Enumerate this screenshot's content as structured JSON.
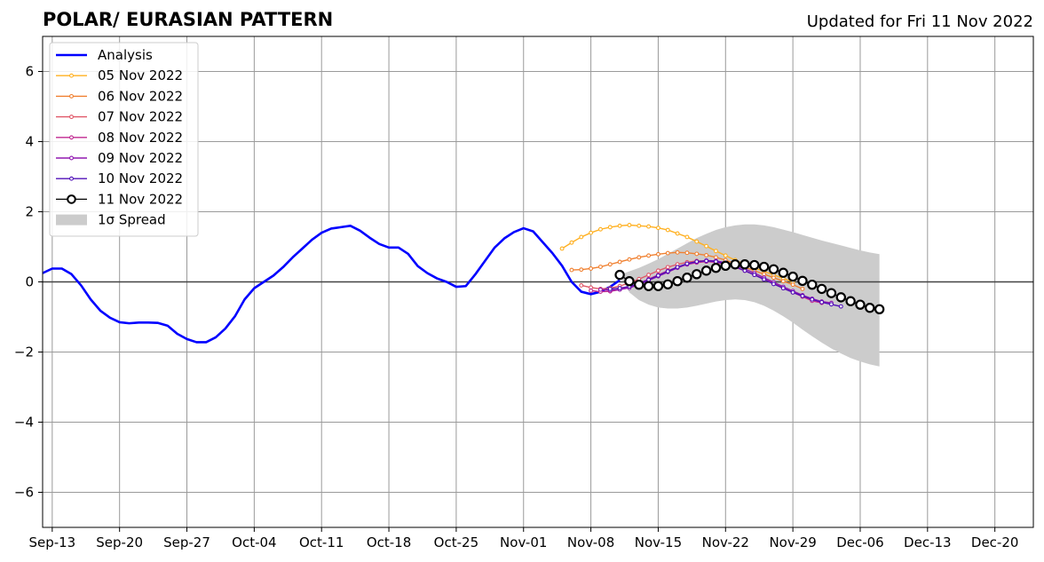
{
  "chart_data": {
    "type": "line",
    "title": "POLAR/ EURASIAN  PATTERN",
    "subtitle": "Updated for Fri 11 Nov 2022",
    "xlabel": "",
    "ylabel": "",
    "xlim": [
      "2022-09-12",
      "2022-12-24"
    ],
    "ylim": [
      -7,
      7
    ],
    "yticks": [
      -6,
      -4,
      -2,
      0,
      2,
      4,
      6
    ],
    "ytick_labels": [
      "−6",
      "−4",
      "−2",
      "0",
      "2",
      "4",
      "6"
    ],
    "xticks": [
      {
        "date": "2022-09-13",
        "label": "Sep-13"
      },
      {
        "date": "2022-09-20",
        "label": "Sep-20"
      },
      {
        "date": "2022-09-27",
        "label": "Sep-27"
      },
      {
        "date": "2022-10-04",
        "label": "Oct-04"
      },
      {
        "date": "2022-10-11",
        "label": "Oct-11"
      },
      {
        "date": "2022-10-18",
        "label": "Oct-18"
      },
      {
        "date": "2022-10-25",
        "label": "Oct-25"
      },
      {
        "date": "2022-11-01",
        "label": "Nov-01"
      },
      {
        "date": "2022-11-08",
        "label": "Nov-08"
      },
      {
        "date": "2022-11-15",
        "label": "Nov-15"
      },
      {
        "date": "2022-11-22",
        "label": "Nov-22"
      },
      {
        "date": "2022-11-29",
        "label": "Nov-29"
      },
      {
        "date": "2022-12-06",
        "label": "Dec-06"
      },
      {
        "date": "2022-12-13",
        "label": "Dec-13"
      },
      {
        "date": "2022-12-20",
        "label": "Dec-20"
      }
    ],
    "grid": true,
    "legend_position": "upper-left",
    "analysis": {
      "name": "Analysis",
      "color": "#0000ff",
      "start_date": "2022-09-12",
      "values": [
        0.25,
        0.38,
        0.38,
        0.22,
        -0.1,
        -0.5,
        -0.82,
        -1.02,
        -1.15,
        -1.18,
        -1.16,
        -1.16,
        -1.17,
        -1.25,
        -1.48,
        -1.63,
        -1.72,
        -1.72,
        -1.58,
        -1.33,
        -0.98,
        -0.5,
        -0.18,
        0.0,
        0.18,
        0.42,
        0.7,
        0.95,
        1.2,
        1.4,
        1.52,
        1.56,
        1.6,
        1.46,
        1.26,
        1.08,
        0.98,
        0.98,
        0.8,
        0.45,
        0.25,
        0.1,
        0.0,
        -0.14,
        -0.12,
        0.22,
        0.6,
        0.98,
        1.24,
        1.42,
        1.53,
        1.44,
        1.13,
        0.82,
        0.46,
        0.0,
        -0.28,
        -0.35,
        -0.28,
        -0.14,
        0.05
      ]
    },
    "forecasts": [
      {
        "name": "05 Nov 2022",
        "color": "#ffb020",
        "start_date": "2022-11-05",
        "values": [
          0.95,
          1.12,
          1.28,
          1.4,
          1.5,
          1.56,
          1.6,
          1.62,
          1.6,
          1.58,
          1.54,
          1.48,
          1.38,
          1.28,
          1.15,
          1.02,
          0.88,
          0.75,
          0.62,
          0.5,
          0.4,
          0.3,
          0.2,
          0.1,
          0.0
        ]
      },
      {
        "name": "06 Nov 2022",
        "color": "#f08030",
        "start_date": "2022-11-06",
        "values": [
          0.34,
          0.35,
          0.38,
          0.43,
          0.5,
          0.57,
          0.64,
          0.7,
          0.75,
          0.79,
          0.82,
          0.84,
          0.83,
          0.8,
          0.76,
          0.7,
          0.62,
          0.52,
          0.42,
          0.32,
          0.22,
          0.12,
          0.02,
          -0.08,
          -0.2
        ]
      },
      {
        "name": "07 Nov 2022",
        "color": "#e05868",
        "start_date": "2022-11-07",
        "values": [
          -0.1,
          -0.16,
          -0.2,
          -0.18,
          -0.12,
          -0.03,
          0.08,
          0.2,
          0.32,
          0.42,
          0.5,
          0.56,
          0.6,
          0.6,
          0.56,
          0.5,
          0.42,
          0.32,
          0.2,
          0.08,
          -0.04,
          -0.16,
          -0.28,
          -0.4,
          -0.52
        ]
      },
      {
        "name": "08 Nov 2022",
        "color": "#c02890",
        "start_date": "2022-11-08",
        "values": [
          -0.25,
          -0.28,
          -0.27,
          -0.22,
          -0.14,
          -0.04,
          0.08,
          0.2,
          0.32,
          0.42,
          0.5,
          0.55,
          0.58,
          0.56,
          0.5,
          0.42,
          0.32,
          0.2,
          0.08,
          -0.05,
          -0.18,
          -0.3,
          -0.42,
          -0.54,
          -0.6
        ]
      },
      {
        "name": "09 Nov 2022",
        "color": "#9018b0",
        "start_date": "2022-11-09",
        "values": [
          -0.22,
          -0.24,
          -0.22,
          -0.17,
          -0.08,
          0.04,
          0.16,
          0.28,
          0.4,
          0.5,
          0.57,
          0.61,
          0.6,
          0.55,
          0.47,
          0.37,
          0.25,
          0.12,
          -0.01,
          -0.14,
          -0.26,
          -0.38,
          -0.48,
          -0.56,
          -0.6
        ]
      },
      {
        "name": "10 Nov 2022",
        "color": "#5010b8",
        "start_date": "2022-11-10",
        "values": [
          -0.2,
          -0.18,
          -0.13,
          -0.05,
          0.06,
          0.18,
          0.3,
          0.42,
          0.52,
          0.58,
          0.6,
          0.58,
          0.52,
          0.43,
          0.32,
          0.2,
          0.07,
          -0.06,
          -0.18,
          -0.3,
          -0.4,
          -0.5,
          -0.58,
          -0.64,
          -0.7
        ]
      }
    ],
    "ensemble_mean": {
      "name": "11 Nov 2022",
      "color": "#000000",
      "start_date": "2022-11-11",
      "values": [
        0.2,
        0.02,
        -0.08,
        -0.12,
        -0.12,
        -0.07,
        0.02,
        0.12,
        0.22,
        0.32,
        0.4,
        0.46,
        0.5,
        0.5,
        0.48,
        0.43,
        0.36,
        0.26,
        0.15,
        0.03,
        -0.08,
        -0.2,
        -0.32,
        -0.44,
        -0.55,
        -0.65,
        -0.74,
        -0.78
      ]
    },
    "spread": {
      "name": "1σ Spread",
      "color": "#cccccc",
      "start_date": "2022-11-11",
      "upper": [
        0.2,
        0.3,
        0.4,
        0.52,
        0.65,
        0.8,
        0.95,
        1.1,
        1.25,
        1.37,
        1.48,
        1.56,
        1.61,
        1.64,
        1.64,
        1.61,
        1.56,
        1.49,
        1.42,
        1.34,
        1.26,
        1.18,
        1.11,
        1.04,
        0.97,
        0.9,
        0.84,
        0.79
      ],
      "lower": [
        0.2,
        -0.3,
        -0.52,
        -0.65,
        -0.73,
        -0.76,
        -0.76,
        -0.73,
        -0.68,
        -0.62,
        -0.56,
        -0.52,
        -0.5,
        -0.52,
        -0.58,
        -0.68,
        -0.82,
        -0.98,
        -1.16,
        -1.36,
        -1.55,
        -1.73,
        -1.9,
        -2.04,
        -2.17,
        -2.27,
        -2.35,
        -2.41
      ]
    }
  }
}
